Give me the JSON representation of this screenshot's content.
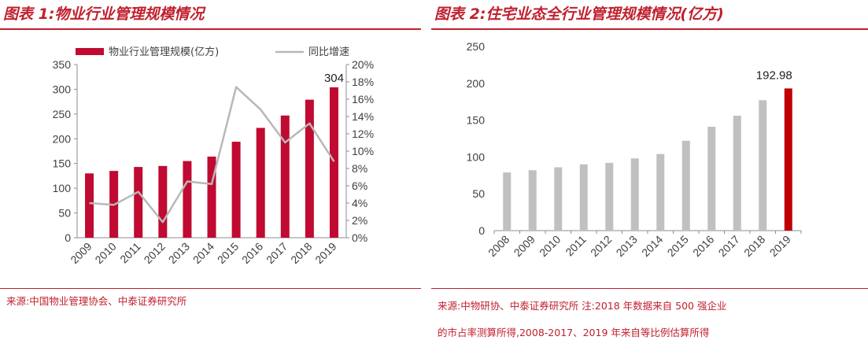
{
  "colors": {
    "accent": "#c0202e",
    "bar_red": "#c00a32",
    "bar_gray": "#c0c0c0",
    "line_gray": "#b8b8b8",
    "bar_highlight": "#c00000"
  },
  "panel1": {
    "title": "图表 1:物业行业管理规模情况",
    "source": "来源:中国物业管理协会、中泰证券研究所"
  },
  "panel2": {
    "title": "图表 2:住宅业态全行业管理规模情况(亿方)",
    "source_line1": "来源:中物研协、中泰证券研究所      注:2018 年数据来自 500 强企业",
    "source_line2": "的市占率测算所得,2008-2017、2019 年来自等比例估算所得"
  },
  "chart_data": [
    {
      "type": "bar",
      "categories": [
        "2009",
        "2010",
        "2011",
        "2012",
        "2013",
        "2014",
        "2015",
        "2016",
        "2017",
        "2018",
        "2019"
      ],
      "series": [
        {
          "name": "物业行业管理规模(亿方)",
          "type": "bar",
          "axis": "left",
          "values": [
            130,
            135,
            143,
            145,
            155,
            164,
            194,
            222,
            247,
            279,
            304
          ]
        },
        {
          "name": "同比增速",
          "type": "line",
          "axis": "right",
          "values": [
            0.04,
            0.038,
            0.053,
            0.018,
            0.065,
            0.062,
            0.174,
            0.148,
            0.11,
            0.132,
            0.088
          ]
        }
      ],
      "ylim": [
        0,
        350
      ],
      "yticks": [
        "0",
        "50",
        "100",
        "150",
        "200",
        "250",
        "300",
        "350"
      ],
      "y2lim": [
        0,
        0.2
      ],
      "y2ticks": [
        "0%",
        "2%",
        "4%",
        "6%",
        "8%",
        "10%",
        "12%",
        "14%",
        "16%",
        "18%",
        "20%"
      ],
      "annotations": [
        {
          "category": "2019",
          "text": "304"
        }
      ],
      "legend": "top",
      "grid": false
    },
    {
      "type": "bar",
      "categories": [
        "2008",
        "2009",
        "2010",
        "2011",
        "2012",
        "2013",
        "2014",
        "2015",
        "2016",
        "2017",
        "2018",
        "2019"
      ],
      "values": [
        79,
        82,
        86,
        90,
        92,
        98,
        104,
        122,
        141,
        156,
        177,
        192.98
      ],
      "highlight": "2019",
      "ylim": [
        0,
        250
      ],
      "yticks": [
        "0",
        "50",
        "100",
        "150",
        "200",
        "250"
      ],
      "annotations": [
        {
          "category": "2019",
          "text": "192.98"
        }
      ],
      "grid": false
    }
  ]
}
